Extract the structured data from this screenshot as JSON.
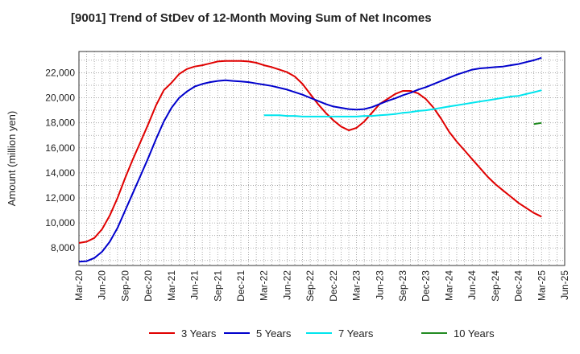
{
  "chart_data": {
    "type": "line",
    "title": "[9001]  Trend of StDev of 12-Month Moving Sum of Net Incomes",
    "xlabel": "",
    "ylabel": "Amount (million yen)",
    "ylim": [
      6600,
      23700
    ],
    "y_ticks": [
      8000,
      10000,
      12000,
      14000,
      16000,
      18000,
      20000,
      22000
    ],
    "y_tick_labels": [
      "8,000",
      "10,000",
      "12,000",
      "14,000",
      "16,000",
      "18,000",
      "20,000",
      "22,000"
    ],
    "x_ticks": [
      "Mar-20",
      "Jun-20",
      "Sep-20",
      "Dec-20",
      "Mar-21",
      "Jun-21",
      "Sep-21",
      "Dec-21",
      "Mar-22",
      "Jun-22",
      "Sep-22",
      "Dec-22",
      "Mar-23",
      "Jun-23",
      "Sep-23",
      "Dec-23",
      "Mar-24",
      "Jun-24",
      "Sep-24",
      "Dec-24",
      "Mar-25",
      "Jun-25"
    ],
    "grid": true,
    "legend_position": "bottom",
    "series": [
      {
        "name": "3 Years",
        "color": "#e00000",
        "x": [
          "Mar-20",
          "Apr-20",
          "May-20",
          "Jun-20",
          "Jul-20",
          "Aug-20",
          "Sep-20",
          "Oct-20",
          "Nov-20",
          "Dec-20",
          "Jan-21",
          "Feb-21",
          "Mar-21",
          "Apr-21",
          "May-21",
          "Jun-21",
          "Jul-21",
          "Aug-21",
          "Sep-21",
          "Oct-21",
          "Nov-21",
          "Dec-21",
          "Jan-22",
          "Feb-22",
          "Mar-22",
          "Apr-22",
          "May-22",
          "Jun-22",
          "Jul-22",
          "Aug-22",
          "Sep-22",
          "Oct-22",
          "Nov-22",
          "Dec-22",
          "Jan-23",
          "Feb-23",
          "Mar-23",
          "Apr-23",
          "May-23",
          "Jun-23",
          "Jul-23",
          "Aug-23",
          "Sep-23",
          "Oct-23",
          "Nov-23",
          "Dec-23",
          "Jan-24",
          "Feb-24",
          "Mar-24",
          "Apr-24",
          "May-24",
          "Jun-24",
          "Jul-24",
          "Aug-24",
          "Sep-24",
          "Oct-24",
          "Nov-24",
          "Dec-24",
          "Jan-25",
          "Feb-25",
          "Mar-25"
        ],
        "values": [
          8400,
          8500,
          8800,
          9500,
          10600,
          12000,
          13600,
          15100,
          16500,
          17900,
          19400,
          20600,
          21200,
          21900,
          22300,
          22500,
          22600,
          22750,
          22900,
          22950,
          22950,
          22950,
          22900,
          22800,
          22600,
          22450,
          22250,
          22050,
          21700,
          21100,
          20300,
          19500,
          18800,
          18200,
          17700,
          17400,
          17600,
          18100,
          18800,
          19500,
          19900,
          20300,
          20550,
          20550,
          20350,
          19900,
          19200,
          18300,
          17300,
          16500,
          15800,
          15100,
          14400,
          13700,
          13100,
          12600,
          12100,
          11600,
          11200,
          10800,
          10500
        ]
      },
      {
        "name": "5 Years",
        "color": "#0000cc",
        "x": [
          "Mar-20",
          "Apr-20",
          "May-20",
          "Jun-20",
          "Jul-20",
          "Aug-20",
          "Sep-20",
          "Oct-20",
          "Nov-20",
          "Dec-20",
          "Jan-21",
          "Feb-21",
          "Mar-21",
          "Apr-21",
          "May-21",
          "Jun-21",
          "Jul-21",
          "Aug-21",
          "Sep-21",
          "Oct-21",
          "Nov-21",
          "Dec-21",
          "Jan-22",
          "Feb-22",
          "Mar-22",
          "Apr-22",
          "May-22",
          "Jun-22",
          "Jul-22",
          "Aug-22",
          "Sep-22",
          "Oct-22",
          "Nov-22",
          "Dec-22",
          "Jan-23",
          "Feb-23",
          "Mar-23",
          "Apr-23",
          "May-23",
          "Jun-23",
          "Jul-23",
          "Aug-23",
          "Sep-23",
          "Oct-23",
          "Nov-23",
          "Dec-23",
          "Jan-24",
          "Feb-24",
          "Mar-24",
          "Apr-24",
          "May-24",
          "Jun-24",
          "Jul-24",
          "Aug-24",
          "Sep-24",
          "Oct-24",
          "Nov-24",
          "Dec-24",
          "Jan-25",
          "Feb-25",
          "Mar-25"
        ],
        "values": [
          6900,
          6950,
          7200,
          7700,
          8500,
          9600,
          11000,
          12400,
          13800,
          15200,
          16700,
          18100,
          19200,
          20000,
          20500,
          20900,
          21100,
          21250,
          21350,
          21400,
          21350,
          21300,
          21250,
          21150,
          21050,
          20950,
          20800,
          20650,
          20450,
          20250,
          20000,
          19750,
          19500,
          19300,
          19200,
          19100,
          19050,
          19100,
          19250,
          19500,
          19750,
          19950,
          20200,
          20400,
          20650,
          20850,
          21100,
          21350,
          21600,
          21850,
          22050,
          22250,
          22350,
          22400,
          22450,
          22500,
          22600,
          22700,
          22850,
          23000,
          23200
        ]
      },
      {
        "name": "7 Years",
        "color": "#00e5ee",
        "x": [
          "Mar-22",
          "Apr-22",
          "May-22",
          "Jun-22",
          "Jul-22",
          "Aug-22",
          "Sep-22",
          "Oct-22",
          "Nov-22",
          "Dec-22",
          "Jan-23",
          "Feb-23",
          "Mar-23",
          "Apr-23",
          "May-23",
          "Jun-23",
          "Jul-23",
          "Aug-23",
          "Sep-23",
          "Oct-23",
          "Nov-23",
          "Dec-23",
          "Jan-24",
          "Feb-24",
          "Mar-24",
          "Apr-24",
          "May-24",
          "Jun-24",
          "Jul-24",
          "Aug-24",
          "Sep-24",
          "Oct-24",
          "Nov-24",
          "Dec-24",
          "Jan-25",
          "Feb-25",
          "Mar-25"
        ],
        "values": [
          18600,
          18600,
          18600,
          18550,
          18550,
          18500,
          18500,
          18500,
          18500,
          18500,
          18500,
          18500,
          18500,
          18550,
          18550,
          18600,
          18650,
          18700,
          18800,
          18850,
          18950,
          19000,
          19100,
          19200,
          19300,
          19400,
          19500,
          19600,
          19700,
          19800,
          19900,
          20000,
          20100,
          20150,
          20300,
          20450,
          20600
        ]
      },
      {
        "name": "10 Years",
        "color": "#228b22",
        "x": [
          "Feb-25",
          "Mar-25"
        ],
        "values": [
          17900,
          18000
        ]
      }
    ]
  }
}
